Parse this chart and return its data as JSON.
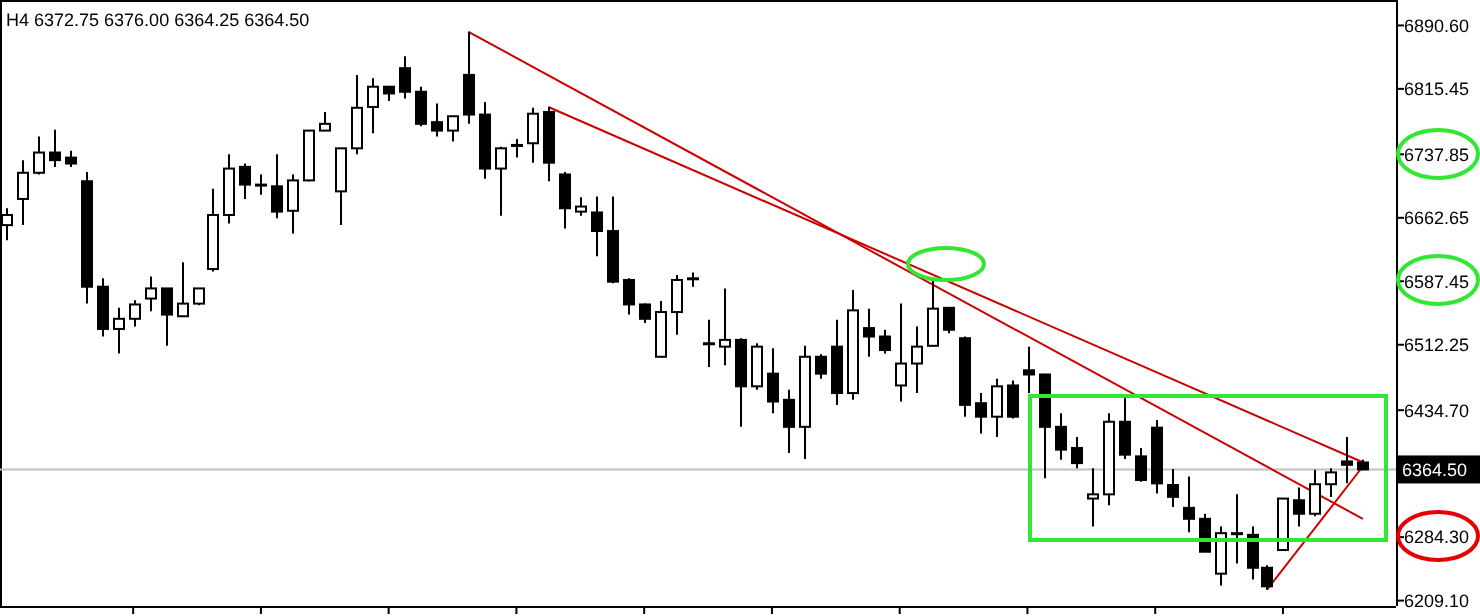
{
  "chart_data": {
    "type": "candlestick",
    "title": "H4 6372.75 6376.00 6364.25 6364.50",
    "categories": [
      null,
      null,
      null,
      null,
      null,
      null,
      null,
      null,
      null,
      null,
      null,
      null,
      null,
      null,
      null,
      null,
      null,
      null,
      null,
      null,
      null,
      null,
      null,
      null,
      null,
      null,
      null,
      null,
      null,
      null,
      null,
      null,
      null,
      null,
      null,
      null,
      null,
      null,
      null,
      null,
      null,
      null,
      null,
      null,
      null,
      null,
      null,
      null,
      null,
      null,
      null,
      null,
      null,
      null,
      null,
      null,
      null,
      null,
      null,
      null,
      null,
      null,
      null,
      null,
      null,
      null,
      null,
      null,
      null,
      null,
      null,
      null,
      null,
      null,
      null,
      null,
      null,
      null,
      null,
      null,
      null,
      null,
      null,
      null,
      null,
      null
    ],
    "ohlc": [
      [
        6654,
        6674,
        6636,
        6666
      ],
      [
        6685,
        6731,
        6654,
        6716
      ],
      [
        6716,
        6759,
        6714,
        6740
      ],
      [
        6740,
        6767,
        6723,
        6731
      ],
      [
        6734,
        6742,
        6723,
        6727
      ],
      [
        6706,
        6717,
        6561,
        6581
      ],
      [
        6581,
        6591,
        6522,
        6531
      ],
      [
        6531,
        6556,
        6502,
        6543
      ],
      [
        6543,
        6565,
        6534,
        6560
      ],
      [
        6567,
        6593,
        6552,
        6579
      ],
      [
        6579,
        6579,
        6511,
        6548
      ],
      [
        6546,
        6610,
        6546,
        6561
      ],
      [
        6561,
        6579,
        6559,
        6579
      ],
      [
        6602,
        6697,
        6599,
        6666
      ],
      [
        6666,
        6738,
        6656,
        6721
      ],
      [
        6723,
        6727,
        6685,
        6702
      ],
      [
        6702,
        6714,
        6690,
        6702
      ],
      [
        6700,
        6738,
        6662,
        6670
      ],
      [
        6671,
        6714,
        6644,
        6707
      ],
      [
        6707,
        6766,
        6706,
        6766
      ],
      [
        6766,
        6788,
        6766,
        6774
      ],
      [
        6694,
        6745,
        6654,
        6745
      ],
      [
        6745,
        6832,
        6738,
        6793
      ],
      [
        6794,
        6828,
        6763,
        6818
      ],
      [
        6818,
        6818,
        6801,
        6810
      ],
      [
        6840,
        6854,
        6804,
        6812
      ],
      [
        6812,
        6818,
        6771,
        6774
      ],
      [
        6776,
        6798,
        6759,
        6766
      ],
      [
        6766,
        6783,
        6753,
        6783
      ],
      [
        6832,
        6883,
        6774,
        6785
      ],
      [
        6785,
        6800,
        6709,
        6721
      ],
      [
        6721,
        6747,
        6665,
        6745
      ],
      [
        6749,
        6756,
        6734,
        6749
      ],
      [
        6751,
        6793,
        6728,
        6786
      ],
      [
        6788,
        6794,
        6706,
        6728
      ],
      [
        6714,
        6717,
        6650,
        6674
      ],
      [
        6670,
        6687,
        6665,
        6676
      ],
      [
        6669,
        6688,
        6617,
        6647
      ],
      [
        6647,
        6688,
        6585,
        6587
      ],
      [
        6589,
        6591,
        6548,
        6560
      ],
      [
        6560,
        6561,
        6538,
        6543
      ],
      [
        6498,
        6564,
        6498,
        6551
      ],
      [
        6551,
        6595,
        6524,
        6589
      ],
      [
        6591,
        6598,
        6581,
        6591
      ],
      [
        6514,
        6542,
        6486,
        6514
      ],
      [
        6510,
        6579,
        6488,
        6518
      ],
      [
        6518,
        6520,
        6415,
        6463
      ],
      [
        6463,
        6514,
        6459,
        6510
      ],
      [
        6478,
        6508,
        6431,
        6445
      ],
      [
        6447,
        6459,
        6384,
        6415
      ],
      [
        6415,
        6511,
        6377,
        6498
      ],
      [
        6498,
        6501,
        6472,
        6478
      ],
      [
        6510,
        6542,
        6441,
        6455
      ],
      [
        6455,
        6577,
        6447,
        6553
      ],
      [
        6532,
        6555,
        6498,
        6522
      ],
      [
        6522,
        6530,
        6502,
        6506
      ],
      [
        6464,
        6561,
        6445,
        6490
      ],
      [
        6490,
        6534,
        6455,
        6510
      ],
      [
        6511,
        6589,
        6511,
        6555
      ],
      [
        6556,
        6556,
        6526,
        6530
      ],
      [
        6520,
        6522,
        6427,
        6441
      ],
      [
        6443,
        6455,
        6407,
        6427
      ],
      [
        6427,
        6472,
        6403,
        6463
      ],
      [
        6464,
        6470,
        6425,
        6427
      ],
      [
        6482,
        6510,
        6455,
        6477
      ],
      [
        6477,
        6478,
        6354,
        6415
      ],
      [
        6415,
        6431,
        6376,
        6388
      ],
      [
        6390,
        6403,
        6366,
        6372
      ],
      [
        6330,
        6366,
        6297,
        6335
      ],
      [
        6335,
        6431,
        6322,
        6421
      ],
      [
        6421,
        6451,
        6377,
        6382
      ],
      [
        6380,
        6390,
        6350,
        6352
      ],
      [
        6414,
        6423,
        6336,
        6348
      ],
      [
        6346,
        6365,
        6320,
        6332
      ],
      [
        6319,
        6356,
        6290,
        6306
      ],
      [
        6306,
        6312,
        6267,
        6267
      ],
      [
        6241,
        6297,
        6227,
        6289
      ],
      [
        6289,
        6335,
        6253,
        6289
      ],
      [
        6287,
        6297,
        6234,
        6248
      ],
      [
        6248,
        6251,
        6222,
        6226
      ],
      [
        6269,
        6330,
        6269,
        6330
      ],
      [
        6328,
        6343,
        6297,
        6312
      ],
      [
        6312,
        6364,
        6309,
        6347
      ],
      [
        6347,
        6366,
        6332,
        6361
      ],
      [
        6374,
        6403,
        6348,
        6370
      ],
      [
        6372.75,
        6376,
        6364.25,
        6364.5
      ]
    ],
    "color": "#000000",
    "series": [
      {
        "type": "line",
        "color": "#cc0000",
        "values": [
          null,
          null,
          null,
          null,
          null,
          null,
          null,
          null,
          null,
          null,
          null,
          null,
          null,
          null,
          null,
          null,
          null,
          null,
          null,
          null,
          null,
          null,
          null,
          null,
          null,
          null,
          null,
          null,
          null,
          6883,
          null,
          null,
          null,
          null,
          null,
          null,
          null,
          null,
          null,
          null,
          null,
          null,
          null,
          null,
          null,
          null,
          null,
          null,
          null,
          null,
          null,
          null,
          null,
          null,
          null,
          null,
          null,
          null,
          null,
          null,
          null,
          null,
          null,
          null,
          null,
          null,
          null,
          null,
          null,
          null,
          null,
          null,
          null,
          null,
          null,
          null,
          null,
          null,
          null,
          null,
          null,
          null,
          null,
          null,
          null,
          6306
        ]
      },
      {
        "type": "line",
        "color": "#cc0000",
        "values": [
          null,
          null,
          null,
          null,
          null,
          null,
          null,
          null,
          null,
          null,
          null,
          null,
          null,
          null,
          null,
          null,
          null,
          null,
          null,
          null,
          null,
          null,
          null,
          null,
          null,
          null,
          null,
          null,
          null,
          null,
          null,
          null,
          null,
          null,
          6794,
          null,
          null,
          null,
          null,
          null,
          null,
          null,
          null,
          null,
          null,
          null,
          null,
          null,
          null,
          null,
          null,
          null,
          null,
          null,
          null,
          null,
          null,
          null,
          null,
          null,
          null,
          null,
          null,
          null,
          null,
          null,
          null,
          null,
          null,
          null,
          null,
          null,
          null,
          null,
          null,
          null,
          null,
          null,
          null,
          null,
          null,
          null,
          null,
          null,
          null,
          6373
        ]
      },
      {
        "type": "line",
        "color": "#cc0000",
        "values": [
          null,
          null,
          null,
          null,
          null,
          null,
          null,
          null,
          null,
          null,
          null,
          null,
          null,
          null,
          null,
          null,
          null,
          null,
          null,
          null,
          null,
          null,
          null,
          null,
          null,
          null,
          null,
          null,
          null,
          null,
          null,
          null,
          null,
          null,
          null,
          null,
          null,
          null,
          null,
          null,
          null,
          null,
          null,
          null,
          null,
          null,
          null,
          null,
          null,
          null,
          null,
          null,
          null,
          null,
          null,
          null,
          null,
          null,
          null,
          null,
          null,
          null,
          null,
          null,
          null,
          null,
          null,
          null,
          null,
          null,
          null,
          null,
          null,
          null,
          null,
          null,
          null,
          null,
          null,
          6222,
          null,
          null,
          null,
          null,
          null,
          6368
        ]
      }
    ],
    "marker": "none",
    "line_style": "solid",
    "ylim": [
      6202.7,
      6916
    ],
    "yticks": [
      {
        "value": 6890.6,
        "label": "6890.60"
      },
      {
        "value": 6815.45,
        "label": "6815.45"
      },
      {
        "value": 6737.85,
        "label": "6737.85"
      },
      {
        "value": 6662.65,
        "label": "6662.65"
      },
      {
        "value": 6587.45,
        "label": "6587.45"
      },
      {
        "value": 6512.25,
        "label": "6512.25"
      },
      {
        "value": 6434.7,
        "label": "6434.70"
      },
      {
        "value": 6284.3,
        "label": "6284.30"
      },
      {
        "value": 6209.1,
        "label": "6209.10"
      }
    ],
    "ref_lines": [
      {
        "axis": "y",
        "value": 6364.5,
        "label": "6364.50",
        "color": "#c0c0c0"
      }
    ]
  }
}
